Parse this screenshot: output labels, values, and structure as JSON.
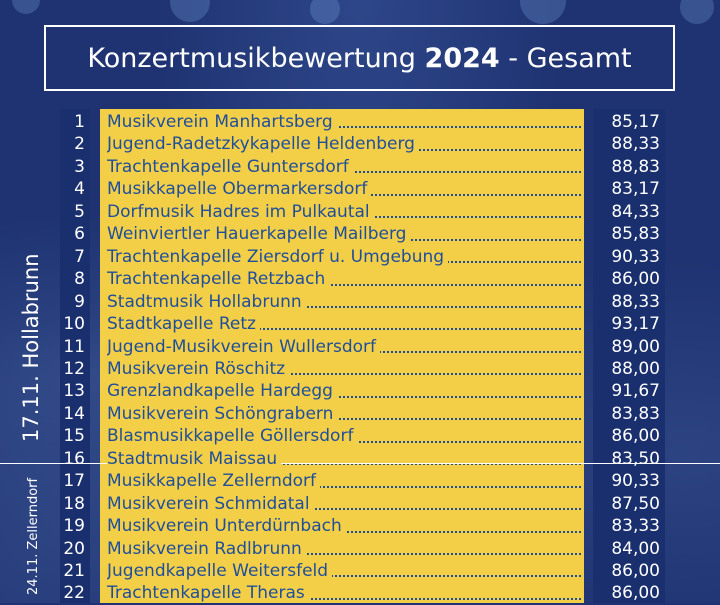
{
  "title": {
    "prefix": "Konzertmusikbewertung",
    "year": "2024",
    "suffix": "- Gesamt"
  },
  "sections": {
    "hollabrunn": "17.11. Hollabrunn",
    "zellerndorf": "24.11. Zellerndorf"
  },
  "results": [
    {
      "rank": "1",
      "name": "Musikverein Manhartsberg",
      "score": "85,17"
    },
    {
      "rank": "2",
      "name": "Jugend-Radetzkykapelle Heldenberg",
      "score": "88,33"
    },
    {
      "rank": "3",
      "name": "Trachtenkapelle Guntersdorf",
      "score": "88,83"
    },
    {
      "rank": "4",
      "name": "Musikkapelle Obermarkersdorf",
      "score": "83,17"
    },
    {
      "rank": "5",
      "name": "Dorfmusik Hadres im Pulkautal",
      "score": "84,33"
    },
    {
      "rank": "6",
      "name": "Weinviertler Hauerkapelle Mailberg",
      "score": "85,83"
    },
    {
      "rank": "7",
      "name": "Trachtenkapelle Ziersdorf u. Umgebung",
      "score": "90,33"
    },
    {
      "rank": "8",
      "name": "Trachtenkapelle Retzbach",
      "score": "86,00"
    },
    {
      "rank": "9",
      "name": "Stadtmusik Hollabrunn",
      "score": "88,33"
    },
    {
      "rank": "10",
      "name": "Stadtkapelle Retz",
      "score": "93,17"
    },
    {
      "rank": "11",
      "name": "Jugend-Musikverein Wullersdorf",
      "score": "89,00"
    },
    {
      "rank": "12",
      "name": "Musikverein Röschitz",
      "score": "88,00"
    },
    {
      "rank": "13",
      "name": "Grenzlandkapelle Hardegg",
      "score": "91,67"
    },
    {
      "rank": "14",
      "name": "Musikverein Schöngrabern",
      "score": "83,83"
    },
    {
      "rank": "15",
      "name": "Blasmusikkapelle Göllersdorf",
      "score": "86,00"
    },
    {
      "rank": "16",
      "name": "Stadtmusik Maissau",
      "score": "83,50"
    },
    {
      "rank": "17",
      "name": "Musikkapelle Zellerndorf",
      "score": "90,33"
    },
    {
      "rank": "18",
      "name": "Musikverein Schmidatal",
      "score": "87,50"
    },
    {
      "rank": "19",
      "name": "Musikverein Unterdürnbach",
      "score": "83,33"
    },
    {
      "rank": "20",
      "name": "Musikverein Radlbrunn",
      "score": "84,00"
    },
    {
      "rank": "21",
      "name": "Jugendkapelle Weitersfeld",
      "score": "86,00"
    },
    {
      "rank": "22",
      "name": "Trachtenkapelle Theras",
      "score": "86,00"
    }
  ],
  "colors": {
    "background": "#1f3372",
    "highlight": "#f3cf47",
    "name_text": "#1f4e9b",
    "light_text": "#ffffff"
  }
}
